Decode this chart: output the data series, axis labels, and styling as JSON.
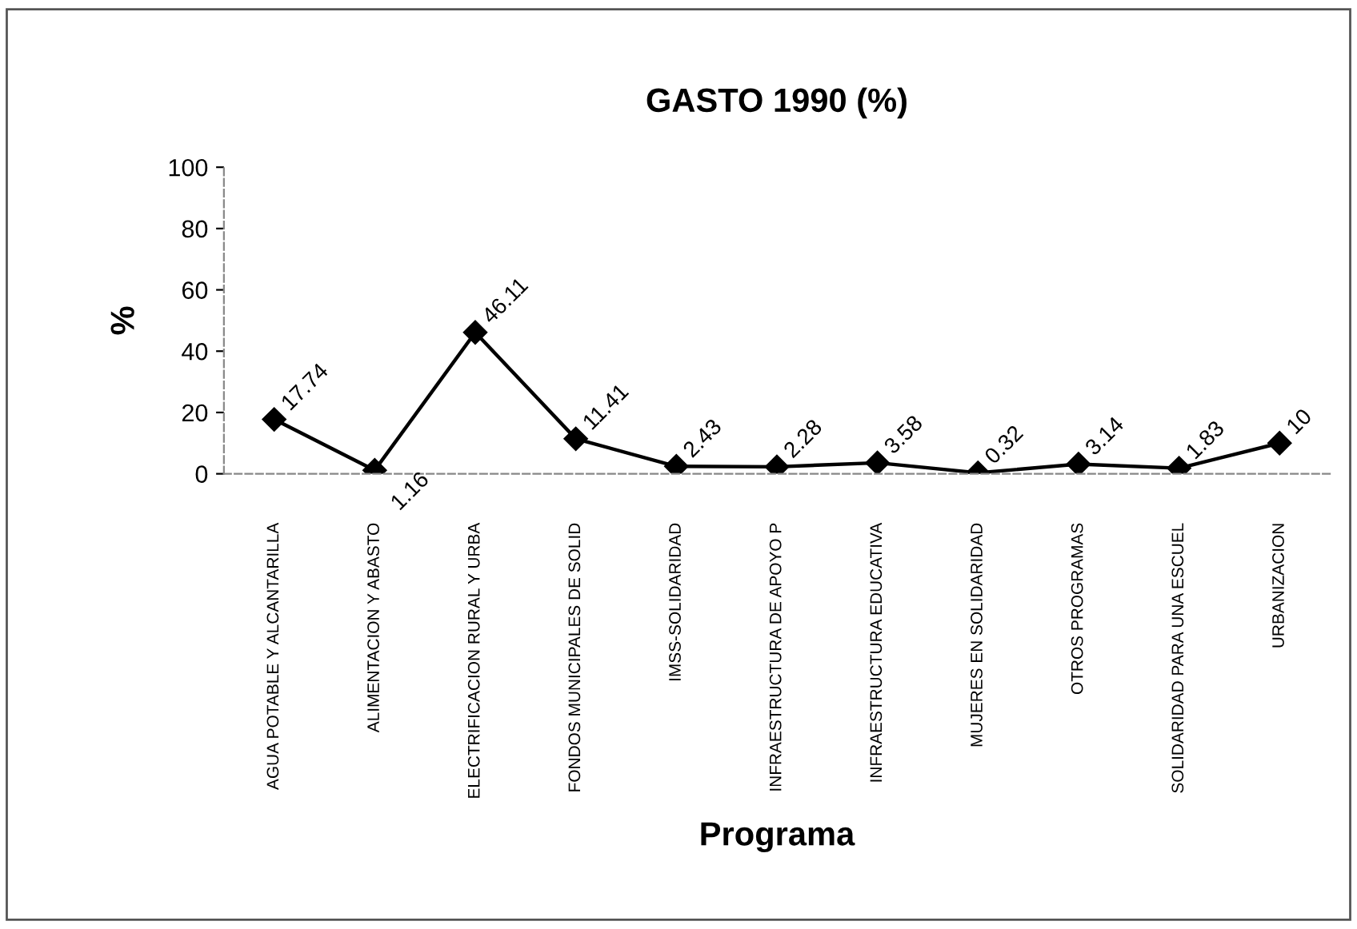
{
  "chart_data": {
    "type": "line",
    "title": "GASTO 1990 (%)",
    "xlabel": "Programa",
    "ylabel": "%",
    "categories": [
      "AGUA POTABLE Y ALCANTARILLA",
      "ALIMENTACION Y ABASTO",
      "ELECTRIFICACION RURAL Y URBA",
      "FONDOS MUNICIPALES DE SOLID",
      "IMSS-SOLIDARIDAD",
      "INFRAESTRUCTURA DE APOYO P",
      "INFRAESTRUCTURA EDUCATIVA",
      "MUJERES EN SOLIDARIDAD",
      "OTROS PROGRAMAS",
      "SOLIDARIDAD PARA UNA ESCUEL",
      "URBANIZACION"
    ],
    "series": [
      {
        "color": "#000000",
        "values": [
          17.74,
          1.16,
          46.11,
          11.41,
          2.43,
          2.28,
          3.58,
          0.32,
          3.14,
          1.83,
          10
        ]
      }
    ],
    "ylim": [
      0,
      100
    ],
    "yticks": [
      0,
      20,
      40,
      60,
      80,
      100
    ],
    "marker": "diamond",
    "line_style": "solid",
    "data_labels": true,
    "grid": false,
    "legend": false
  }
}
